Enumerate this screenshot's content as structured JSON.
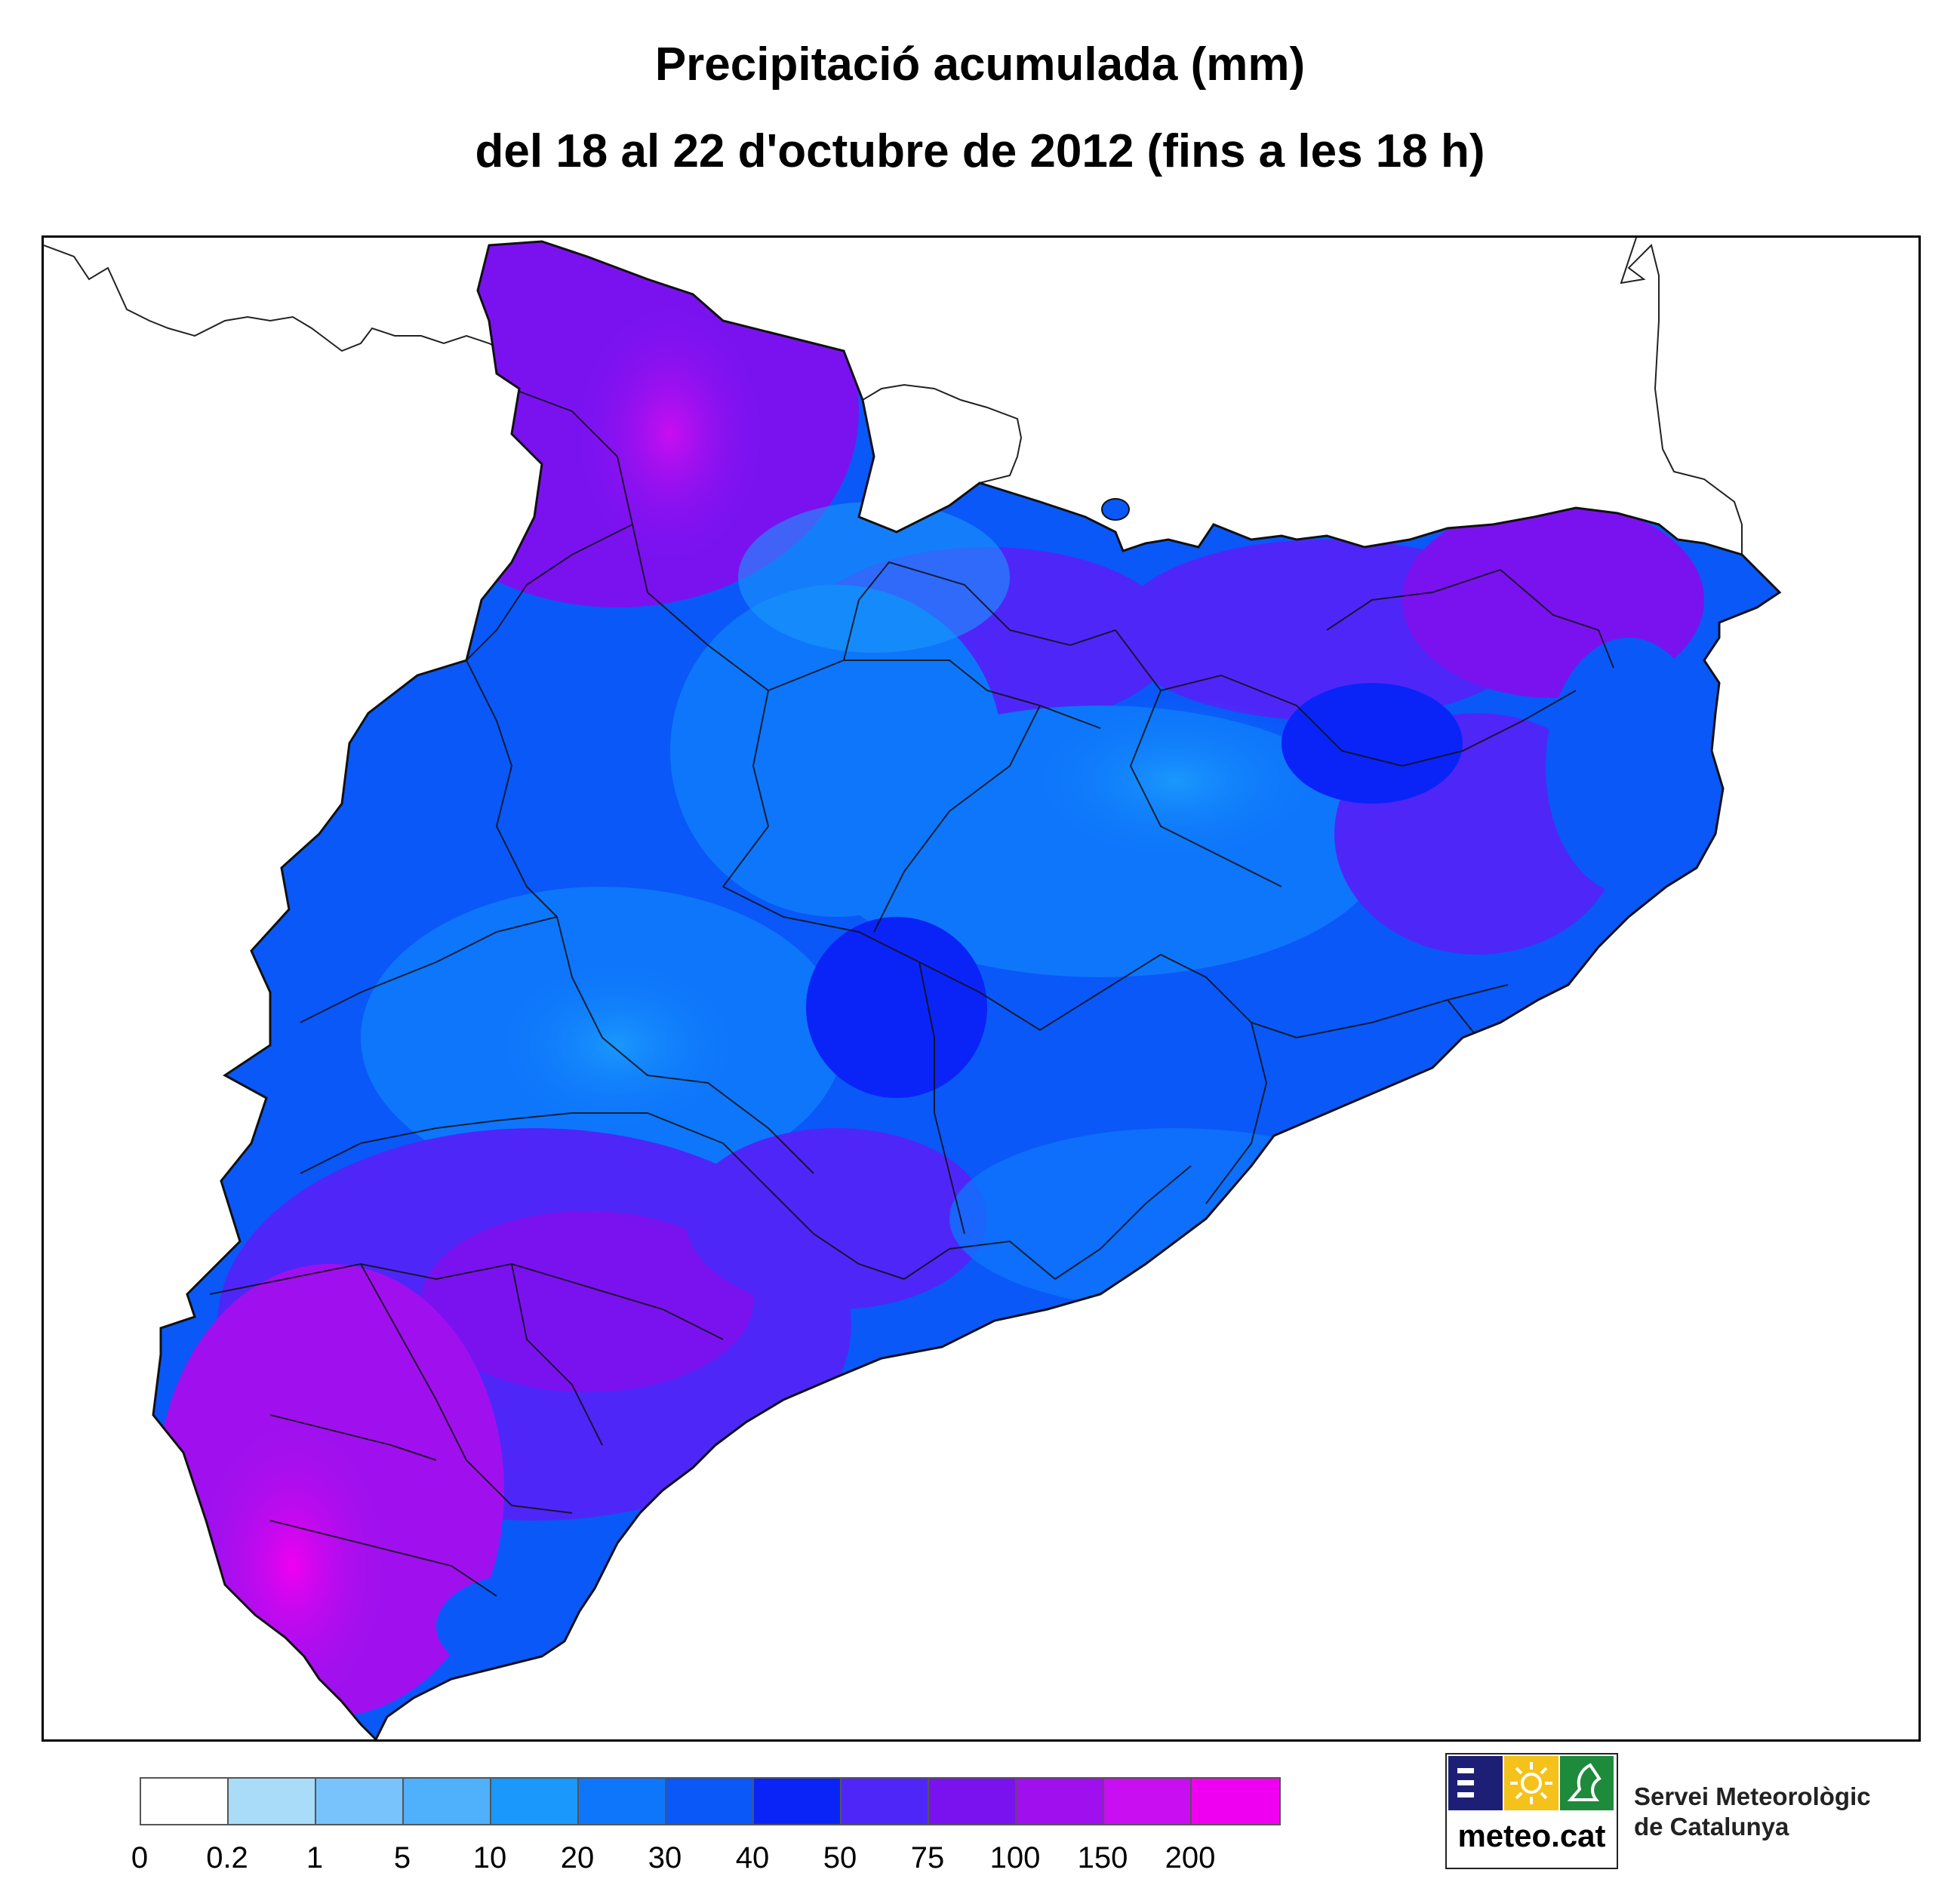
{
  "title": {
    "line1": "Precipitació acumulada (mm)",
    "line2": "del 18 al 22 d'octubre de 2012 (fins a les 18 h)"
  },
  "legend": {
    "ticks": [
      "0",
      "0.2",
      "1",
      "5",
      "10",
      "20",
      "30",
      "40",
      "50",
      "75",
      "100",
      "150",
      "200"
    ],
    "colors": [
      "#ffffff",
      "#a9dcf9",
      "#78c3fc",
      "#4fb0fb",
      "#1a98fc",
      "#0e76fb",
      "#0a58f8",
      "#0a24f8",
      "#4e27f8",
      "#7a12f0",
      "#a010ee",
      "#c90ef1",
      "#f000f0"
    ]
  },
  "map": {
    "region_fill_ranges": {
      "north_pyrenees": "100-150",
      "central_east": "10-30",
      "south_ebre": "100-200",
      "coast": "40-75"
    }
  },
  "logo": {
    "site": "meteo.cat",
    "org_line1": "Servei Meteorològic",
    "org_line2": "de Catalunya",
    "colors": {
      "blue": "#1d1f77",
      "yellow": "#f4c21a",
      "green": "#1d8a3c"
    }
  }
}
